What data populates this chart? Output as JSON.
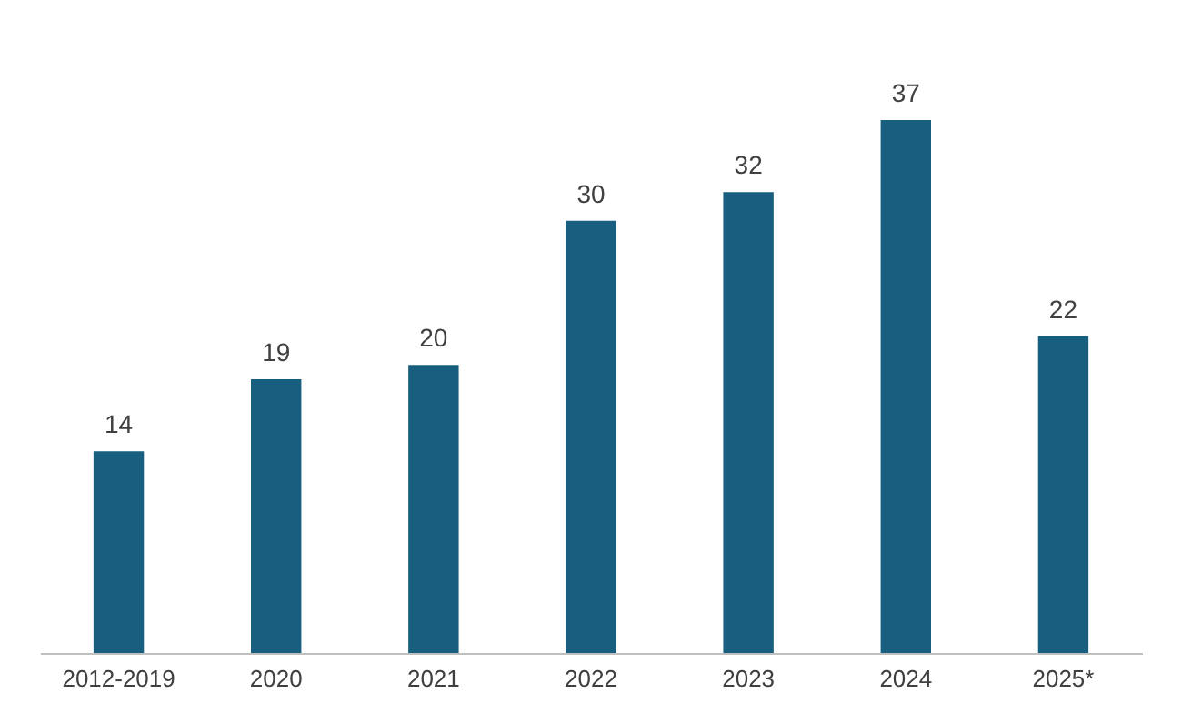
{
  "chart_data": {
    "type": "bar",
    "categories": [
      "2012-2019",
      "2020",
      "2021",
      "2022",
      "2023",
      "2024",
      "2025*"
    ],
    "values": [
      14,
      19,
      20,
      30,
      32,
      37,
      22
    ],
    "color": "#175e7f",
    "data_labels": true,
    "grid": false,
    "tick_labels": "x"
  }
}
